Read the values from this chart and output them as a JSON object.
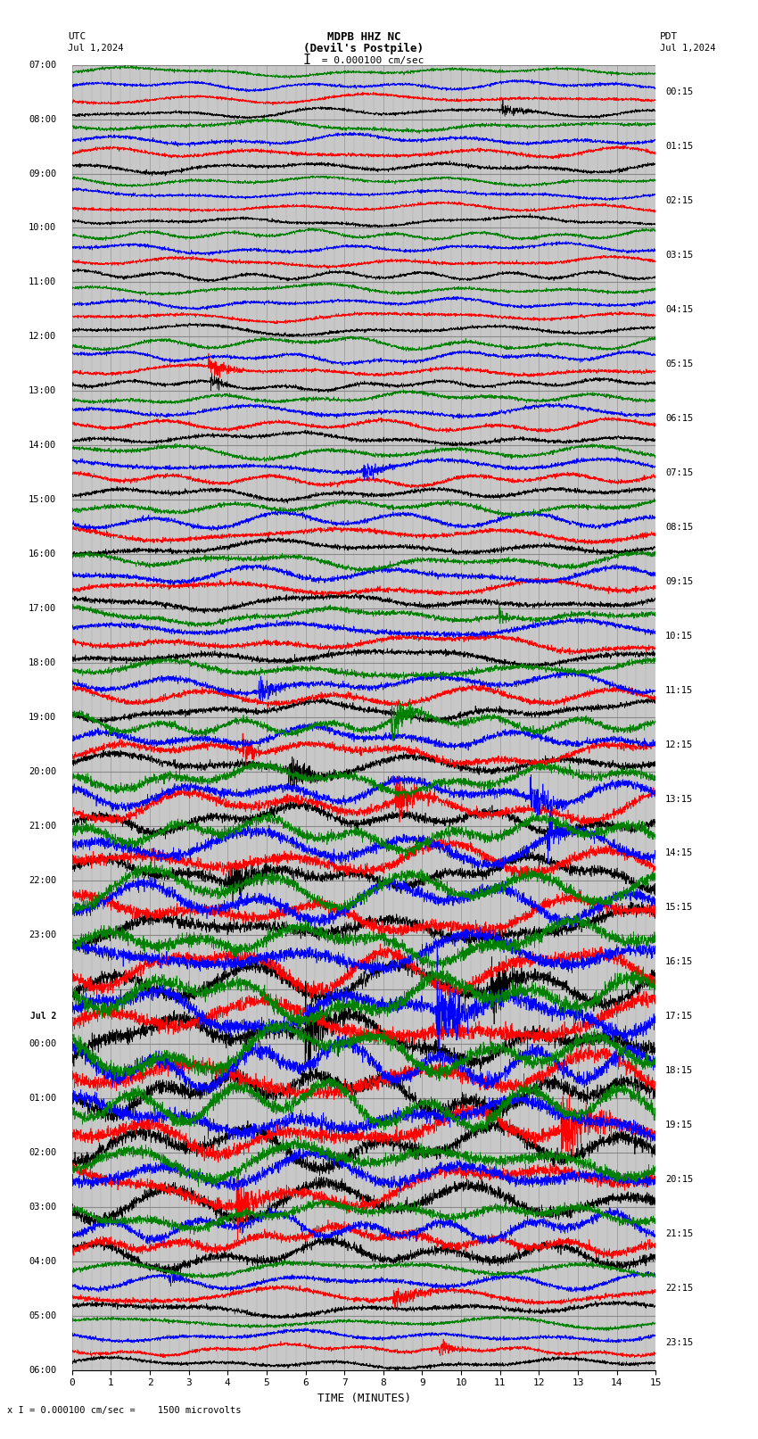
{
  "title_line1": "MDPB HHZ NC",
  "title_line2": "(Devil's Postpile)",
  "scale_text": "I = 0.000100 cm/sec",
  "footer_text": "x I = 0.000100 cm/sec =    1500 microvolts",
  "utc_label": "UTC",
  "utc_date": "Jul 1,2024",
  "pdt_label": "PDT",
  "pdt_date": "Jul 1,2024",
  "xlabel": "TIME (MINUTES)",
  "left_times": [
    "07:00",
    "08:00",
    "09:00",
    "10:00",
    "11:00",
    "12:00",
    "13:00",
    "14:00",
    "15:00",
    "16:00",
    "17:00",
    "18:00",
    "19:00",
    "20:00",
    "21:00",
    "22:00",
    "23:00",
    "Jul 2",
    "00:00",
    "01:00",
    "02:00",
    "03:00",
    "04:00",
    "05:00",
    "06:00"
  ],
  "right_times": [
    "00:15",
    "01:15",
    "02:15",
    "03:15",
    "04:15",
    "05:15",
    "06:15",
    "07:15",
    "08:15",
    "09:15",
    "10:15",
    "11:15",
    "12:15",
    "13:15",
    "14:15",
    "15:15",
    "16:15",
    "17:15",
    "18:15",
    "19:15",
    "20:15",
    "21:15",
    "22:15",
    "23:15"
  ],
  "n_rows": 24,
  "minutes_per_row": 15,
  "colors": [
    "black",
    "red",
    "blue",
    "green"
  ],
  "bg_color": "#c8c8c8",
  "grid_color": "#888888",
  "trace_amplitude_base": 0.18,
  "noise_amplitude": 0.025,
  "fig_width": 8.5,
  "fig_height": 16.13,
  "dpi": 100,
  "amplitude_scales": [
    0.5,
    0.6,
    0.5,
    0.55,
    0.55,
    0.6,
    0.65,
    0.7,
    0.8,
    0.85,
    0.9,
    1.0,
    1.2,
    1.5,
    1.8,
    2.0,
    2.2,
    2.5,
    2.5,
    2.3,
    2.0,
    1.5,
    0.8,
    0.6
  ]
}
